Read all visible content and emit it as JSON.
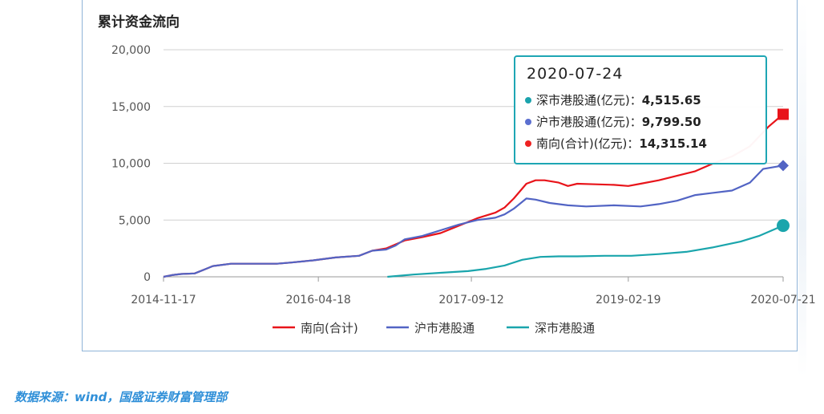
{
  "title": "累计资金流向",
  "source": "数据来源：wind，国盛证券财富管理部",
  "tooltip": {
    "date": "2020-07-24",
    "rows": [
      {
        "label": "深市港股通(亿元)：",
        "value": "4,515.65",
        "color": "#1ba3ad"
      },
      {
        "label": "沪市港股通(亿元)：",
        "value": "9,799.50",
        "color": "#5b6fd0"
      },
      {
        "label": "南向(合计)(亿元)：",
        "value": "14,315.14",
        "color": "#ee2222"
      }
    ]
  },
  "chart_data": {
    "type": "line",
    "x_ticks": [
      "2014-11-17",
      "2016-04-18",
      "2017-09-12",
      "2019-02-19",
      "2020-07-21"
    ],
    "y_ticks": [
      "0",
      "5,000",
      "10,000",
      "15,000",
      "20,000"
    ],
    "ylim": [
      0,
      20000
    ],
    "grid": true,
    "legend_position": "bottom",
    "series": [
      {
        "name": "南向(合计)",
        "color": "#e8141a",
        "marker": "square",
        "points": [
          [
            "2014-11-17",
            0
          ],
          [
            "2014-12-15",
            150
          ],
          [
            "2015-01-15",
            250
          ],
          [
            "2015-03-01",
            300
          ],
          [
            "2015-04-08",
            700
          ],
          [
            "2015-05-01",
            950
          ],
          [
            "2015-07-01",
            1150
          ],
          [
            "2015-09-01",
            1150
          ],
          [
            "2015-12-01",
            1150
          ],
          [
            "2016-01-15",
            1250
          ],
          [
            "2016-04-01",
            1450
          ],
          [
            "2016-06-15",
            1700
          ],
          [
            "2016-09-01",
            1850
          ],
          [
            "2016-10-15",
            2300
          ],
          [
            "2016-12-01",
            2500
          ],
          [
            "2017-02-01",
            3200
          ],
          [
            "2017-04-01",
            3500
          ],
          [
            "2017-06-01",
            3850
          ],
          [
            "2017-08-01",
            4500
          ],
          [
            "2017-10-01",
            5150
          ],
          [
            "2017-12-01",
            5650
          ],
          [
            "2018-01-01",
            6100
          ],
          [
            "2018-02-01",
            6900
          ],
          [
            "2018-03-15",
            8200
          ],
          [
            "2018-04-15",
            8500
          ],
          [
            "2018-05-15",
            8500
          ],
          [
            "2018-07-01",
            8300
          ],
          [
            "2018-08-01",
            8000
          ],
          [
            "2018-09-01",
            8200
          ],
          [
            "2018-11-01",
            8150
          ],
          [
            "2019-01-01",
            8100
          ],
          [
            "2019-02-19",
            8000
          ],
          [
            "2019-04-01",
            8200
          ],
          [
            "2019-06-01",
            8500
          ],
          [
            "2019-08-01",
            8900
          ],
          [
            "2019-10-01",
            9300
          ],
          [
            "2019-12-01",
            10000
          ],
          [
            "2020-02-01",
            10600
          ],
          [
            "2020-04-01",
            11500
          ],
          [
            "2020-06-01",
            13200
          ],
          [
            "2020-07-24",
            14315.14
          ]
        ]
      },
      {
        "name": "沪市港股通",
        "color": "#5264c4",
        "marker": "diamond",
        "points": [
          [
            "2014-11-17",
            0
          ],
          [
            "2014-12-15",
            150
          ],
          [
            "2015-01-15",
            250
          ],
          [
            "2015-03-01",
            300
          ],
          [
            "2015-04-08",
            700
          ],
          [
            "2015-05-01",
            950
          ],
          [
            "2015-07-01",
            1150
          ],
          [
            "2015-09-01",
            1150
          ],
          [
            "2015-12-01",
            1150
          ],
          [
            "2016-01-15",
            1250
          ],
          [
            "2016-04-01",
            1450
          ],
          [
            "2016-06-15",
            1700
          ],
          [
            "2016-09-01",
            1850
          ],
          [
            "2016-10-15",
            2300
          ],
          [
            "2016-12-01",
            2400
          ],
          [
            "2017-01-01",
            2750
          ],
          [
            "2017-02-01",
            3300
          ],
          [
            "2017-04-01",
            3600
          ],
          [
            "2017-06-01",
            4100
          ],
          [
            "2017-08-01",
            4600
          ],
          [
            "2017-10-01",
            5000
          ],
          [
            "2017-12-01",
            5200
          ],
          [
            "2018-01-01",
            5500
          ],
          [
            "2018-02-01",
            6000
          ],
          [
            "2018-03-15",
            6900
          ],
          [
            "2018-04-15",
            6800
          ],
          [
            "2018-06-01",
            6500
          ],
          [
            "2018-08-01",
            6300
          ],
          [
            "2018-10-01",
            6200
          ],
          [
            "2019-01-01",
            6300
          ],
          [
            "2019-04-01",
            6200
          ],
          [
            "2019-06-01",
            6400
          ],
          [
            "2019-08-01",
            6700
          ],
          [
            "2019-10-01",
            7200
          ],
          [
            "2019-12-01",
            7400
          ],
          [
            "2020-02-01",
            7600
          ],
          [
            "2020-04-01",
            8300
          ],
          [
            "2020-05-15",
            9500
          ],
          [
            "2020-07-24",
            9799.5
          ]
        ]
      },
      {
        "name": "深市港股通",
        "color": "#1aa5ac",
        "marker": "circle",
        "points": [
          [
            "2016-12-05",
            0
          ],
          [
            "2017-03-01",
            200
          ],
          [
            "2017-06-01",
            350
          ],
          [
            "2017-09-01",
            500
          ],
          [
            "2017-11-01",
            700
          ],
          [
            "2018-01-01",
            1000
          ],
          [
            "2018-03-01",
            1500
          ],
          [
            "2018-05-01",
            1750
          ],
          [
            "2018-07-01",
            1800
          ],
          [
            "2018-09-01",
            1800
          ],
          [
            "2018-12-01",
            1850
          ],
          [
            "2019-03-01",
            1850
          ],
          [
            "2019-06-01",
            2000
          ],
          [
            "2019-09-01",
            2200
          ],
          [
            "2019-12-01",
            2600
          ],
          [
            "2020-03-01",
            3100
          ],
          [
            "2020-05-01",
            3600
          ],
          [
            "2020-07-24",
            4515.65
          ]
        ]
      }
    ]
  }
}
